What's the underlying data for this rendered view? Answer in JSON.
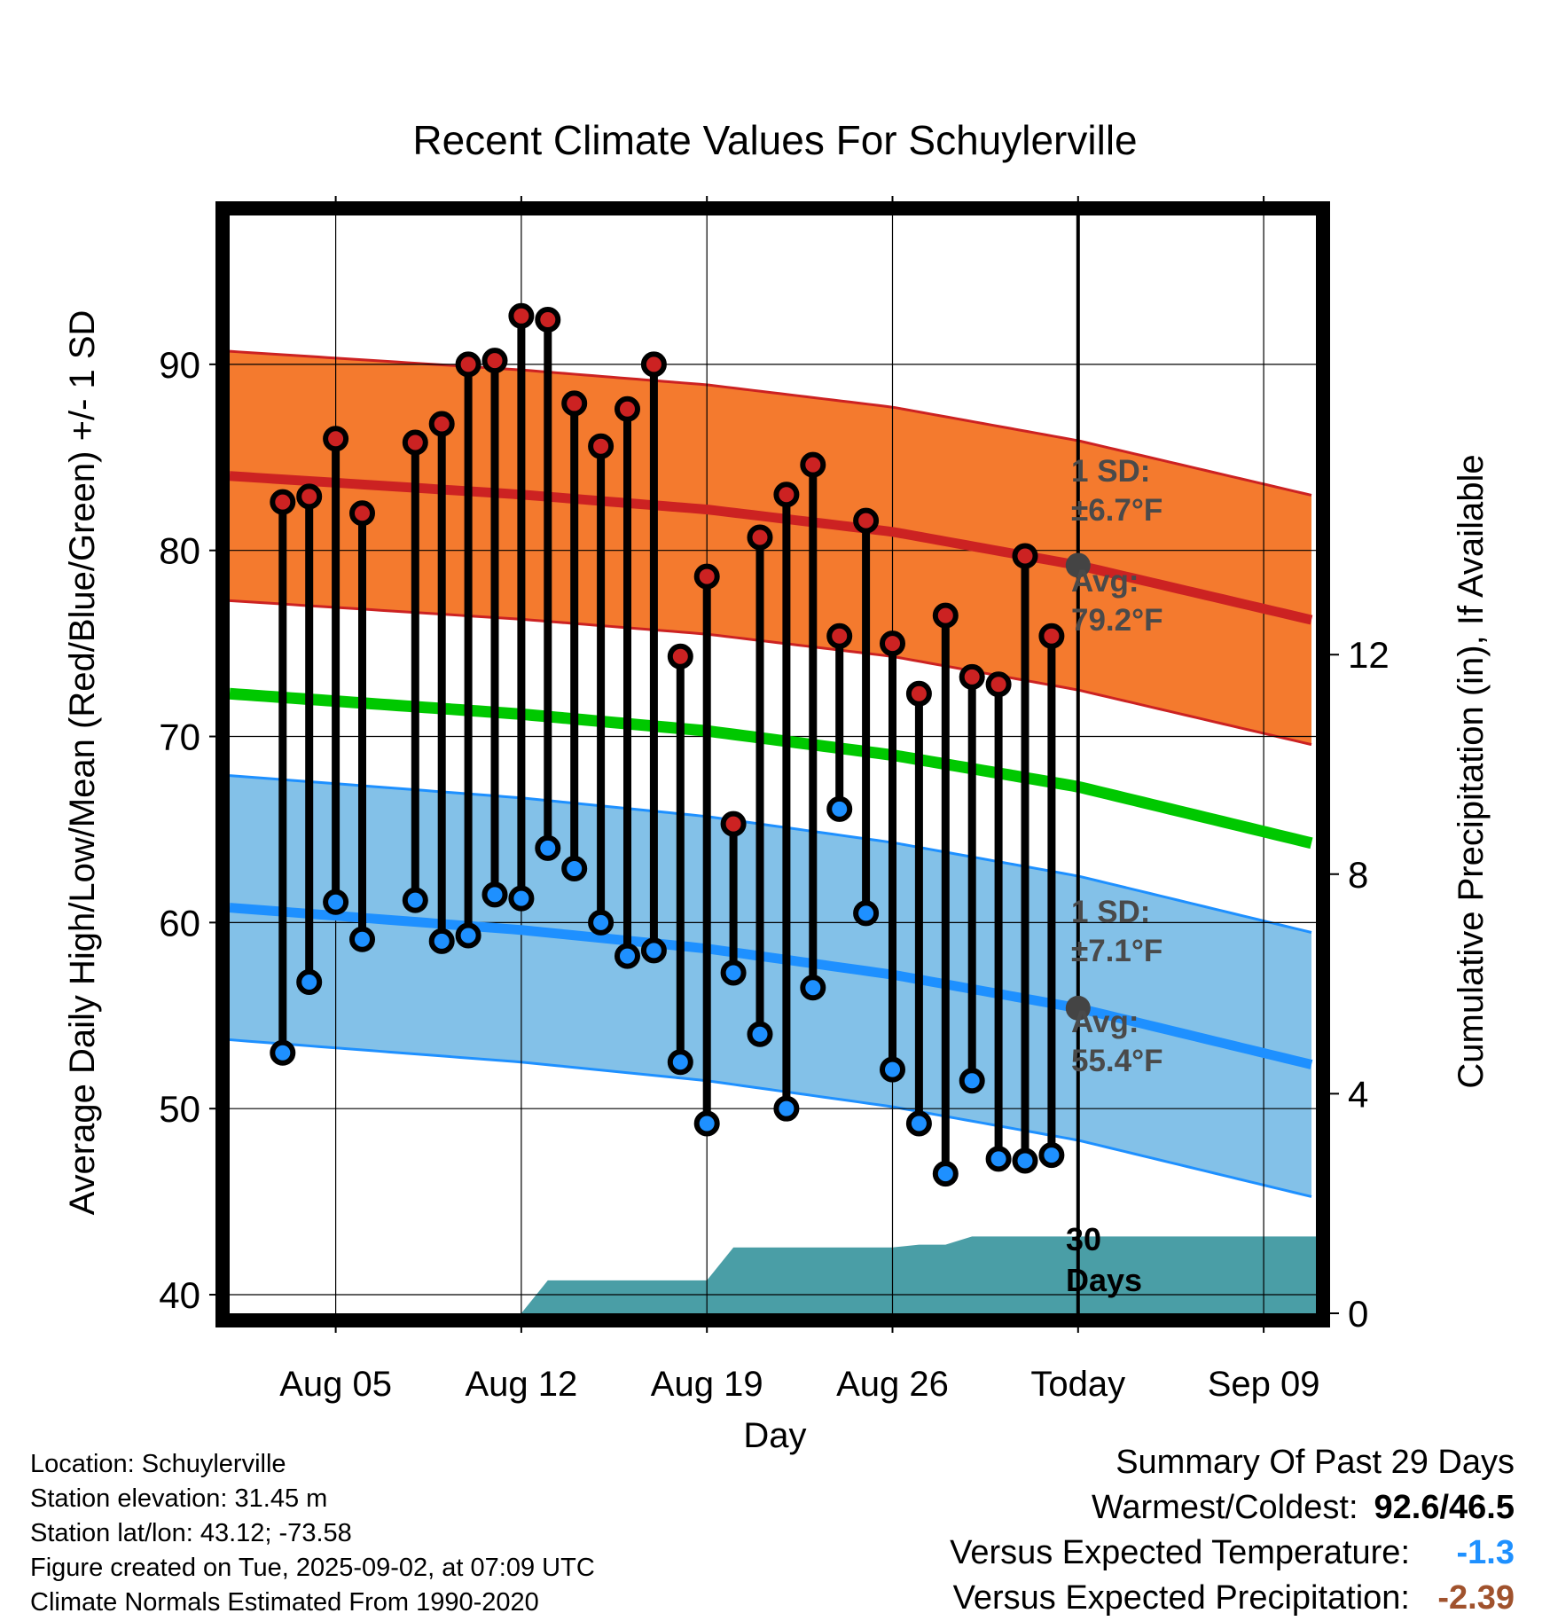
{
  "chart_data": {
    "type": "line",
    "title": "Recent Climate Values For Schuylerville",
    "xlabel": "Day",
    "ylabel": "Average Daily High/Low/Mean (Red/Blue/Green) +/- 1 SD",
    "y2label": "Cumulative Precipitation (in), If Available",
    "ylim": [
      39,
      98
    ],
    "y2lim": [
      0,
      20
    ],
    "yticks": [
      40,
      50,
      60,
      70,
      80,
      90
    ],
    "y2ticks": [
      0,
      4,
      8,
      12
    ],
    "xlim": [
      "Aug 01",
      "Sep 11"
    ],
    "xtick_labels": [
      "Aug 05",
      "Aug 12",
      "Aug 19",
      "Aug 26",
      "Today",
      "Sep 09"
    ],
    "grid": true,
    "today": "Sep 02",
    "days": [
      "Aug 03",
      "Aug 04",
      "Aug 05",
      "Aug 06",
      "Aug 07",
      "Aug 08",
      "Aug 09",
      "Aug 10",
      "Aug 11",
      "Aug 12",
      "Aug 13",
      "Aug 14",
      "Aug 15",
      "Aug 16",
      "Aug 17",
      "Aug 18",
      "Aug 19",
      "Aug 20",
      "Aug 21",
      "Aug 22",
      "Aug 23",
      "Aug 24",
      "Aug 25",
      "Aug 26",
      "Aug 27",
      "Aug 28",
      "Aug 29",
      "Aug 30",
      "Aug 31",
      "Sep 01"
    ],
    "series": [
      {
        "name": "Daily High",
        "color": "#cc2222",
        "values": [
          82.6,
          82.9,
          86.0,
          82.0,
          null,
          85.8,
          86.8,
          90.0,
          90.2,
          92.6,
          92.4,
          87.9,
          85.6,
          87.6,
          90.0,
          74.3,
          78.6,
          65.3,
          80.7,
          83.0,
          84.6,
          75.4,
          81.6,
          75.0,
          72.3,
          76.5,
          73.2,
          72.8,
          79.7,
          75.4
        ]
      },
      {
        "name": "Daily Low",
        "color": "#1e90ff",
        "values": [
          53.0,
          56.8,
          61.1,
          59.1,
          null,
          61.2,
          59.0,
          59.3,
          61.5,
          61.3,
          64.0,
          62.9,
          60.0,
          58.2,
          58.5,
          52.5,
          49.2,
          57.3,
          54.0,
          50.0,
          56.5,
          66.1,
          60.5,
          52.1,
          49.2,
          46.5,
          51.5,
          47.3,
          47.2,
          47.5
        ]
      },
      {
        "name": "Normal High",
        "color": "#cc2222",
        "x": [
          "Aug 01",
          "Aug 12",
          "Aug 19",
          "Aug 26",
          "Sep 02",
          "Sep 11"
        ],
        "values": [
          84.0,
          83.0,
          82.2,
          81.0,
          79.2,
          76.2
        ]
      },
      {
        "name": "Normal Low",
        "color": "#1e90ff",
        "x": [
          "Aug 01",
          "Aug 12",
          "Aug 19",
          "Aug 26",
          "Sep 02",
          "Sep 11"
        ],
        "values": [
          60.8,
          59.6,
          58.6,
          57.2,
          55.4,
          52.3
        ]
      },
      {
        "name": "Normal Mean",
        "color": "#00c800",
        "x": [
          "Aug 01",
          "Aug 12",
          "Aug 19",
          "Aug 26",
          "Sep 02",
          "Sep 11"
        ],
        "values": [
          72.3,
          71.2,
          70.3,
          69.0,
          67.3,
          64.2
        ]
      },
      {
        "name": "Cumulative Precipitation",
        "color": "#4a9ea6",
        "x": [
          "Aug 12",
          "Aug 13",
          "Aug 19",
          "Aug 20",
          "Aug 26",
          "Aug 27",
          "Aug 28",
          "Aug 29",
          "Sep 11"
        ],
        "values": [
          0,
          0.6,
          0.6,
          1.2,
          1.2,
          1.25,
          1.25,
          1.4,
          1.4
        ]
      }
    ],
    "sd_high": 6.7,
    "sd_low": 7.1,
    "annotations": {
      "sd_high_label": "1 SD:",
      "sd_high_value": "±6.7°F",
      "avg_high_label": "Avg:",
      "avg_high_value": "79.2°F",
      "sd_low_label": "1 SD:",
      "sd_low_value": "±7.1°F",
      "avg_low_label": "Avg:",
      "avg_low_value": "55.4°F",
      "days_count": "30",
      "days_word": "Days"
    }
  },
  "footer_left": {
    "location": "Location: Schuylerville",
    "elevation": "Station elevation: 31.45 m",
    "latlon": "Station lat/lon: 43.12; -73.58",
    "created": "Figure created on Tue, 2025-09-02, at 07:09 UTC",
    "normals": "Climate Normals Estimated From 1990-2020"
  },
  "summary": {
    "title": "Summary Of Past 29 Days",
    "warm_cold_label": "Warmest/Coldest:",
    "warm_cold_value": "92.6/46.5",
    "temp_label": "Versus Expected Temperature:",
    "temp_value": "-1.3",
    "precip_label": "Versus Expected Precipitation:",
    "precip_value": "-2.39"
  }
}
